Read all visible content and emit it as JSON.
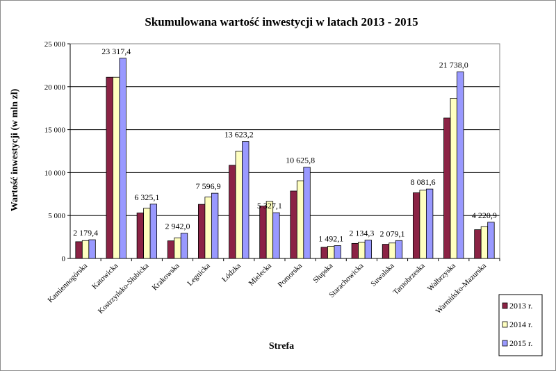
{
  "chart_data": {
    "type": "bar",
    "title": "Skumulowana wartość inwestycji w latach 2013 - 2015",
    "xlabel": "Strefa",
    "ylabel": "Wartość inwestycji (w mln zl)",
    "ylim": [
      0,
      25000
    ],
    "yticks": [
      0,
      5000,
      10000,
      15000,
      20000,
      25000
    ],
    "ytick_labels": [
      "0",
      "5 000",
      "10 000",
      "15 000",
      "20 000",
      "25 000"
    ],
    "grid": true,
    "legend_position": "bottom-right",
    "categories": [
      "Kamiennogórska",
      "Katowicka",
      "Kostrzyńsko-Słubicka",
      "Krakowska",
      "Legnicka",
      "Łódzka",
      "Mielecka",
      "Pomorska",
      "Słupska",
      "Starachowicka",
      "Suwalska",
      "Tarnobrzeska",
      "Wałbrzyska",
      "Warmińsko-Mazurska"
    ],
    "series": [
      {
        "name": "2013 r.",
        "color": "#8b2345",
        "values": [
          1950,
          21100,
          5300,
          2050,
          6300,
          10850,
          6100,
          7850,
          1300,
          1750,
          1650,
          7650,
          16350,
          3350
        ]
      },
      {
        "name": "2014 r.",
        "color": "#ffffc0",
        "values": [
          2080,
          21100,
          5850,
          2400,
          7150,
          12500,
          6650,
          9050,
          1420,
          1900,
          1800,
          7950,
          18650,
          3700
        ]
      },
      {
        "name": "2015 r.",
        "color": "#9999ff",
        "values": [
          2179.4,
          23317.4,
          6325.1,
          2942.0,
          7596.9,
          13623.2,
          5327.1,
          10625.8,
          1492.1,
          2134.3,
          2079.1,
          8081.6,
          21738.0,
          4220.9
        ]
      }
    ],
    "data_labels": [
      "2 179,4",
      "23 317,4",
      "6 325,1",
      "2 942,0",
      "7 596,9",
      "13 623,2",
      "5 327,1",
      "10 625,8",
      "1 492,1",
      "2 134,3",
      "2 079,1",
      "8 081,6",
      "21 738,0",
      "4 220,9"
    ]
  }
}
